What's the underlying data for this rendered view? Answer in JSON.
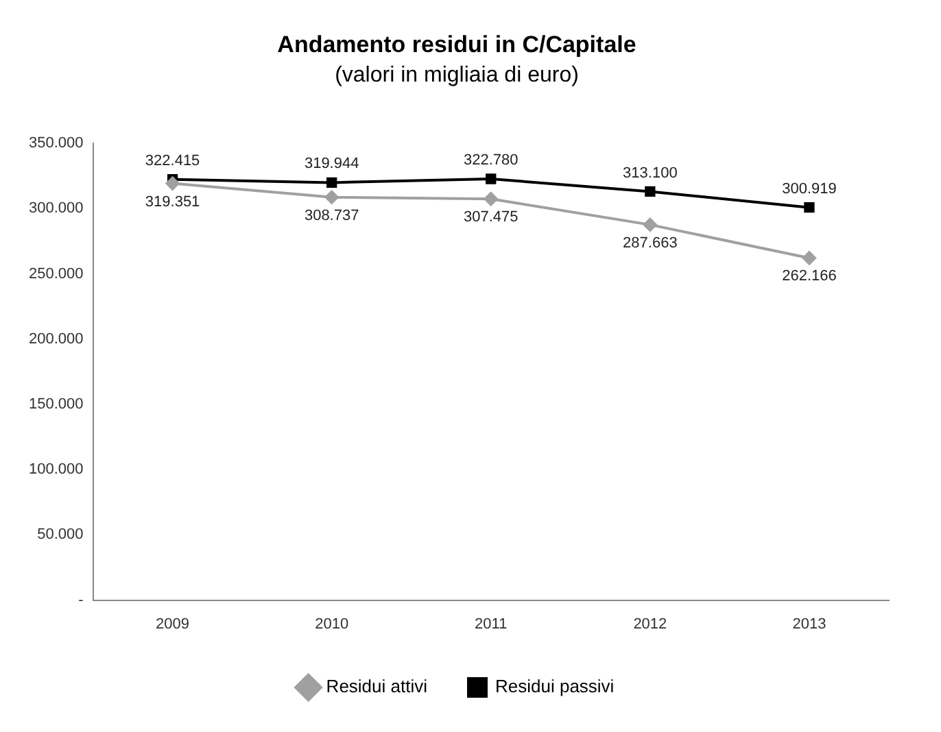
{
  "chart_data": {
    "type": "line",
    "title": "Andamento residui in C/Capitale",
    "subtitle": "(valori in migliaia di euro)",
    "categories": [
      "2009",
      "2010",
      "2011",
      "2012",
      "2013"
    ],
    "series": [
      {
        "name": "Residui attivi",
        "color": "#a0a0a0",
        "marker": "diamond",
        "values": [
          319351,
          308737,
          307475,
          287663,
          262166
        ],
        "value_labels": [
          "319.351",
          "308.737",
          "307.475",
          "287.663",
          "262.166"
        ]
      },
      {
        "name": "Residui passivi",
        "color": "#000000",
        "marker": "square",
        "values": [
          322415,
          319944,
          322780,
          313100,
          300919
        ],
        "value_labels": [
          "322.415",
          "319.944",
          "322.780",
          "313.100",
          "300.919"
        ]
      }
    ],
    "ylim": [
      0,
      350000
    ],
    "yticks": [
      {
        "value": 0,
        "label": "-"
      },
      {
        "value": 50000,
        "label": "50.000"
      },
      {
        "value": 100000,
        "label": "100.000"
      },
      {
        "value": 150000,
        "label": "150.000"
      },
      {
        "value": 200000,
        "label": "200.000"
      },
      {
        "value": 250000,
        "label": "250.000"
      },
      {
        "value": 300000,
        "label": "300.000"
      },
      {
        "value": 350000,
        "label": "350.000"
      }
    ],
    "grid": false,
    "legend": "bottom",
    "line_style": "solid"
  }
}
